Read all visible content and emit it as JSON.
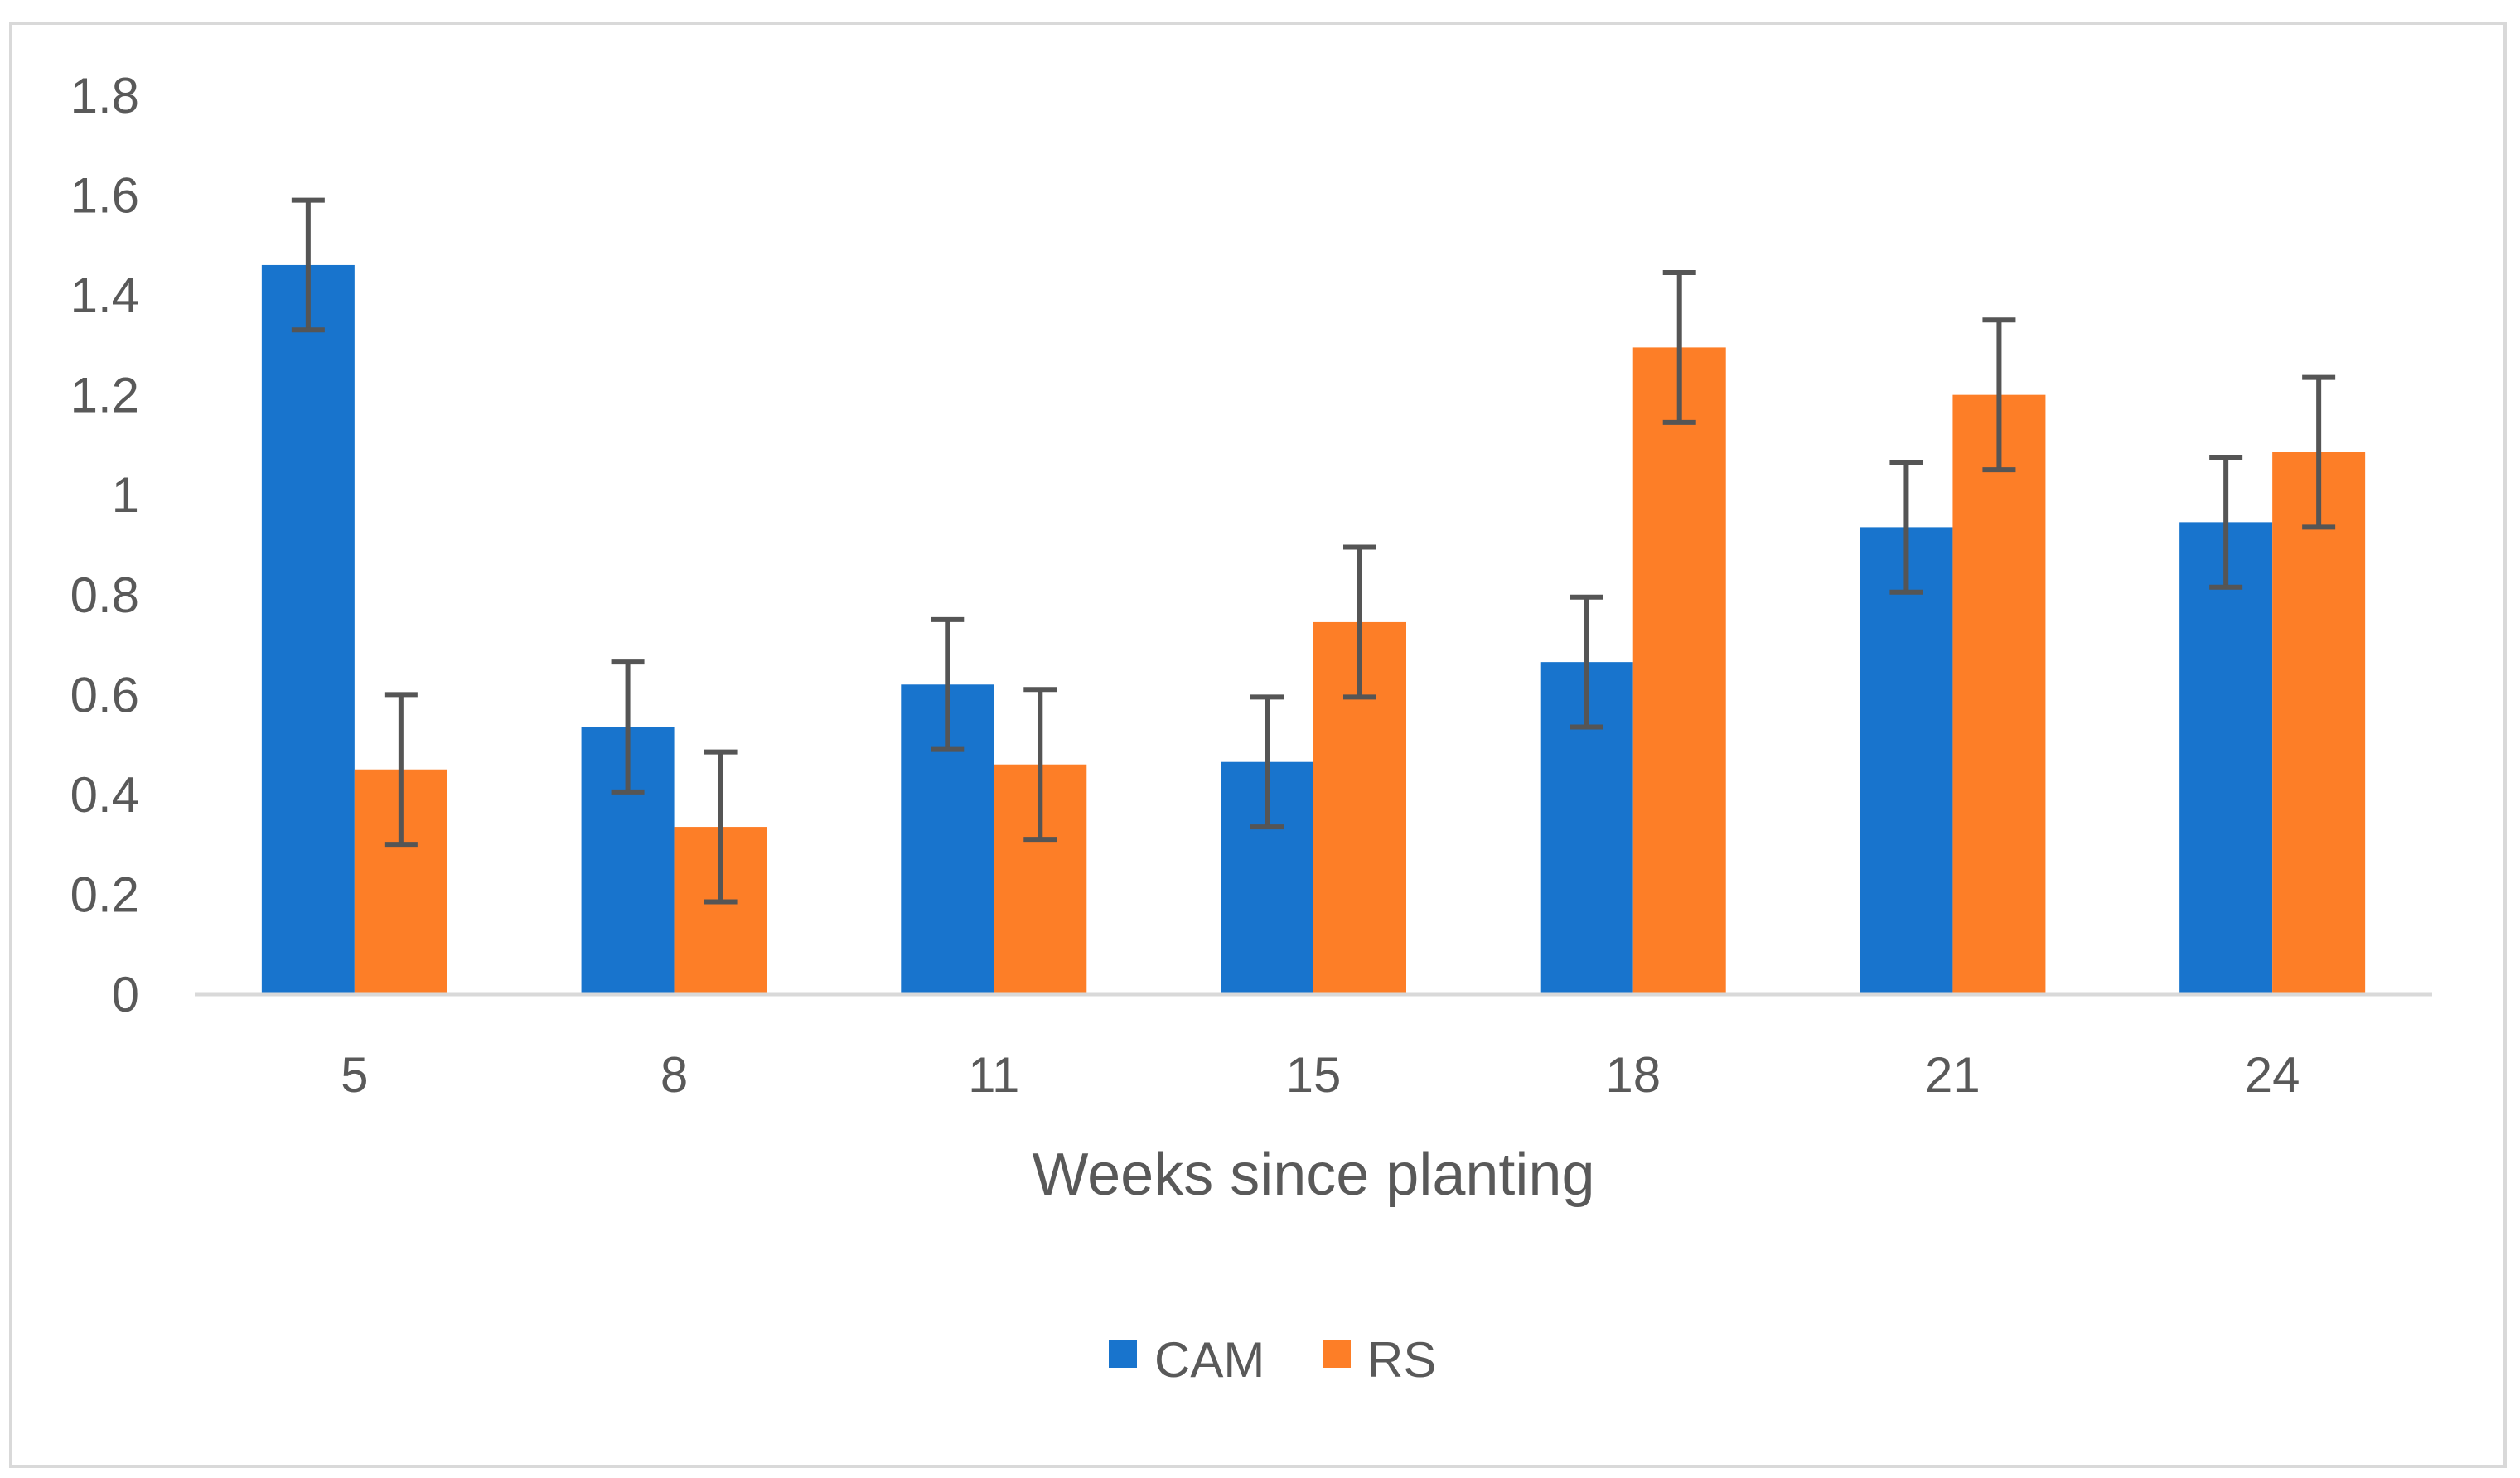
{
  "chart_data": {
    "type": "bar",
    "title": "",
    "xlabel": "Weeks since planting",
    "ylabel": "",
    "categories": [
      "5",
      "8",
      "11",
      "15",
      "18",
      "21",
      "24"
    ],
    "ylim": [
      0,
      1.8
    ],
    "yticks": [
      "0",
      "0.2",
      "0.4",
      "0.6",
      "0.8",
      "1",
      "1.2",
      "1.4",
      "1.6",
      "1.8"
    ],
    "ytick_values": [
      0,
      0.2,
      0.4,
      0.6,
      0.8,
      1.0,
      1.2,
      1.4,
      1.6,
      1.8
    ],
    "grid": false,
    "legend_position": "bottom-center",
    "series": [
      {
        "name": "CAM",
        "color": "#1874CD",
        "values": [
          1.46,
          0.535,
          0.62,
          0.465,
          0.665,
          0.935,
          0.945
        ],
        "errors": [
          0.13,
          0.13,
          0.13,
          0.13,
          0.13,
          0.13,
          0.13
        ]
      },
      {
        "name": "RS",
        "color": "#FD7E27",
        "values": [
          0.45,
          0.335,
          0.46,
          0.745,
          1.295,
          1.2,
          1.085
        ],
        "errors": [
          0.15,
          0.15,
          0.15,
          0.15,
          0.15,
          0.15,
          0.15
        ]
      }
    ]
  }
}
